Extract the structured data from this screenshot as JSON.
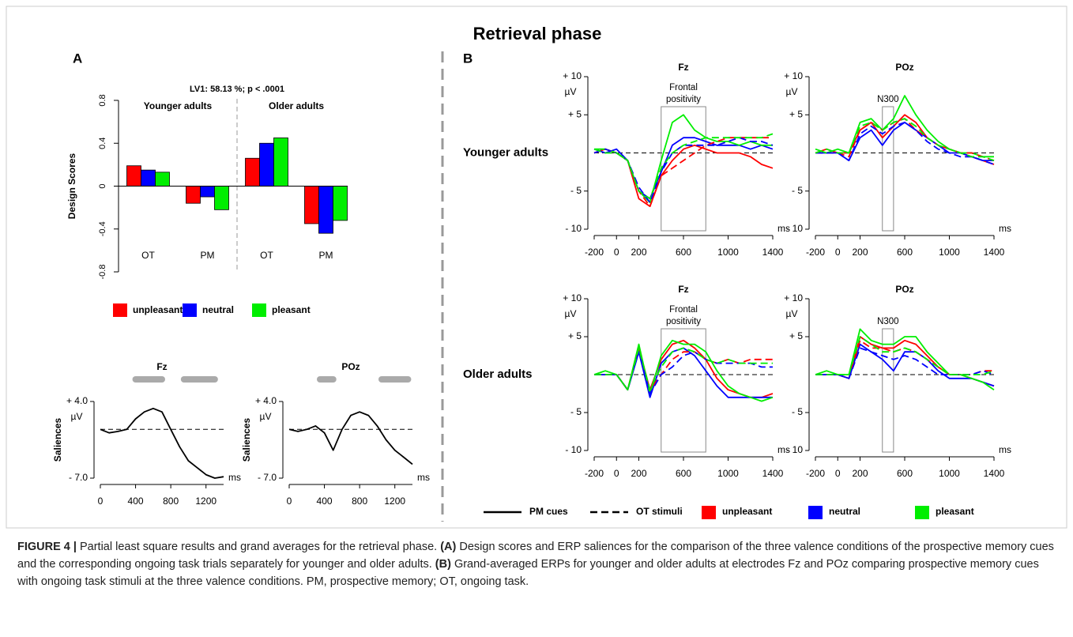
{
  "title": "Retrieval phase",
  "panels": [
    "A",
    "B"
  ],
  "chart_data": [
    {
      "type": "bar",
      "title": "LV1: 58.13 %; p < .0001",
      "ylabel": "Design Scores",
      "groups": [
        "Younger adults",
        "Older adults"
      ],
      "categories": [
        "OT",
        "PM",
        "OT",
        "PM"
      ],
      "series": [
        {
          "name": "unpleasant",
          "color": "#ff0000",
          "values": [
            0.19,
            -0.16,
            0.26,
            -0.35
          ]
        },
        {
          "name": "neutral",
          "color": "#0000ff",
          "values": [
            0.15,
            -0.1,
            0.4,
            -0.44
          ]
        },
        {
          "name": "pleasant",
          "color": "#00ee00",
          "values": [
            0.13,
            -0.22,
            0.45,
            -0.32
          ]
        }
      ],
      "ylim": [
        -0.8,
        0.8
      ],
      "yticks": [
        -0.8,
        -0.4,
        0,
        0.4,
        0.8
      ]
    },
    {
      "type": "line",
      "title": "Fz",
      "ylabel": "Saliences",
      "yunit": "µV",
      "xunit": "ms",
      "x": [
        0,
        100,
        200,
        300,
        400,
        500,
        600,
        700,
        800,
        900,
        1000,
        1100,
        1200,
        1300,
        1400
      ],
      "series": [
        {
          "color": "#000000",
          "dash": "solid",
          "values": [
            0,
            -0.5,
            -0.3,
            0,
            1.5,
            2.5,
            3,
            2.5,
            0,
            -2.5,
            -4.5,
            -5.5,
            -6.5,
            -7,
            -6.8
          ]
        }
      ],
      "significant": [
        [
          400,
          700
        ],
        [
          950,
          1300
        ]
      ],
      "hline": 0,
      "xlim": [
        0,
        1400
      ],
      "xticks": [
        0,
        400,
        800,
        1200
      ],
      "ylim": [
        -7,
        4
      ],
      "yticks": [
        {
          "value": 4,
          "label": "+ 4.0"
        },
        {
          "value": -7,
          "label": "- 7.0"
        }
      ]
    },
    {
      "type": "line",
      "title": "POz",
      "ylabel": "Saliences",
      "yunit": "µV",
      "xunit": "ms",
      "x": [
        0,
        100,
        200,
        300,
        400,
        500,
        600,
        700,
        800,
        900,
        1000,
        1100,
        1200,
        1300,
        1400
      ],
      "series": [
        {
          "color": "#000000",
          "dash": "solid",
          "values": [
            0,
            -0.3,
            0,
            0.5,
            -0.5,
            -3,
            0,
            2,
            2.5,
            2,
            0.5,
            -1.5,
            -3,
            -4,
            -5
          ]
        }
      ],
      "significant": [
        [
          350,
          500
        ],
        [
          1050,
          1350
        ]
      ],
      "hline": 0,
      "xlim": [
        0,
        1400
      ],
      "xticks": [
        0,
        400,
        800,
        1200
      ],
      "ylim": [
        -7,
        4
      ],
      "yticks": [
        {
          "value": 4,
          "label": "+ 4.0"
        },
        {
          "value": -7,
          "label": "- 7.0"
        }
      ]
    },
    {
      "type": "line",
      "title": "Fz",
      "row_label": "Younger adults",
      "yunit": "µV",
      "xunit": "ms",
      "window": {
        "label": "Frontal positivity",
        "xlim": [
          400,
          800
        ]
      },
      "hline": 0,
      "x": [
        -200,
        -100,
        0,
        100,
        200,
        300,
        400,
        500,
        600,
        700,
        800,
        900,
        1000,
        1100,
        1200,
        1300,
        1400
      ],
      "series": [
        {
          "name": "unpleasant",
          "color": "#ff0000",
          "dash": "solid",
          "values": [
            0,
            0.5,
            0,
            -1,
            -6,
            -7,
            -3,
            -1,
            0.5,
            1,
            0.5,
            0,
            0,
            0,
            -0.5,
            -1.5,
            -2
          ]
        },
        {
          "name": "neutral",
          "color": "#0000ff",
          "dash": "solid",
          "values": [
            0.5,
            0,
            0.5,
            -1,
            -5,
            -6,
            -2.5,
            1,
            2,
            2,
            1.5,
            1,
            1,
            1,
            0.5,
            1,
            0.5
          ]
        },
        {
          "name": "pleasant",
          "color": "#00ee00",
          "dash": "solid",
          "values": [
            0.5,
            0.5,
            0,
            -1,
            -5,
            -6.5,
            -1,
            4,
            5,
            3,
            2,
            1.5,
            1.5,
            1,
            1.5,
            1,
            1
          ]
        },
        {
          "name": "unpleasant",
          "color": "#ff0000",
          "dash": "dashed",
          "values": [
            0,
            0.5,
            0,
            -1,
            -5,
            -7,
            -3,
            -2,
            -1,
            0,
            1,
            1.5,
            2,
            2,
            2,
            2,
            2
          ]
        },
        {
          "name": "neutral",
          "color": "#0000ff",
          "dash": "dashed",
          "values": [
            0,
            0.5,
            0,
            -1,
            -4.5,
            -6.5,
            -2.5,
            0,
            1,
            1,
            1,
            1,
            1.5,
            2,
            1.5,
            1.5,
            1
          ]
        },
        {
          "name": "pleasant",
          "color": "#00ee00",
          "dash": "dashed",
          "values": [
            0.5,
            0,
            0,
            -1,
            -5,
            -6,
            -2,
            0,
            1,
            1.5,
            2,
            2,
            2,
            2,
            2,
            2,
            2.5
          ]
        }
      ],
      "xlim": [
        -200,
        1400
      ],
      "xticks": [
        -200,
        0,
        200,
        600,
        1000,
        1400
      ],
      "ylim": [
        -10,
        10
      ],
      "yticks": [
        {
          "value": 10,
          "label": "+ 10"
        },
        {
          "value": 5,
          "label": "+ 5"
        },
        {
          "value": -5,
          "label": "- 5"
        },
        {
          "value": -10,
          "label": "- 10"
        }
      ]
    },
    {
      "type": "line",
      "title": "POz",
      "yunit": "µV",
      "xunit": "ms",
      "window": {
        "label": "N300",
        "xlim": [
          400,
          500
        ]
      },
      "hline": 0,
      "x": [
        -200,
        -100,
        0,
        100,
        200,
        300,
        400,
        500,
        600,
        700,
        800,
        900,
        1000,
        1100,
        1200,
        1300,
        1400
      ],
      "series": [
        {
          "name": "unpleasant",
          "color": "#ff0000",
          "dash": "solid",
          "values": [
            0,
            0.5,
            0,
            0,
            3,
            4,
            2,
            3.5,
            5,
            4,
            2,
            1,
            0.5,
            0,
            -0.5,
            -1,
            -1.5
          ]
        },
        {
          "name": "neutral",
          "color": "#0000ff",
          "dash": "solid",
          "values": [
            0,
            0,
            0,
            -1,
            2,
            3,
            1,
            3,
            4,
            3,
            2,
            1,
            0,
            0,
            -0.5,
            -1,
            -1
          ]
        },
        {
          "name": "pleasant",
          "color": "#00ee00",
          "dash": "solid",
          "values": [
            0.5,
            0,
            0.5,
            0,
            4,
            4.5,
            3,
            4.5,
            7.5,
            5,
            3,
            1.5,
            0.5,
            0,
            0,
            -0.5,
            -0.5
          ]
        },
        {
          "name": "unpleasant",
          "color": "#ff0000",
          "dash": "dashed",
          "values": [
            0,
            0,
            0,
            -0.5,
            3,
            4,
            3,
            4,
            4.5,
            3,
            2,
            1,
            0.5,
            0,
            0,
            -0.5,
            -1
          ]
        },
        {
          "name": "neutral",
          "color": "#0000ff",
          "dash": "dashed",
          "values": [
            0,
            0,
            0,
            -1,
            2.5,
            3.5,
            2.5,
            3.5,
            4,
            3,
            1.5,
            0.5,
            0,
            -0.5,
            -0.5,
            -1,
            -1.5
          ]
        },
        {
          "name": "pleasant",
          "color": "#00ee00",
          "dash": "dashed",
          "values": [
            0,
            0.5,
            0,
            0,
            3.5,
            4,
            3,
            4,
            4.5,
            3.5,
            2,
            1,
            0.5,
            0,
            -0.5,
            -0.5,
            -1
          ]
        }
      ],
      "xlim": [
        -200,
        1400
      ],
      "xticks": [
        -200,
        0,
        200,
        600,
        1000,
        1400
      ],
      "ylim": [
        -10,
        10
      ],
      "yticks": [
        {
          "value": 10,
          "label": "+ 10"
        },
        {
          "value": 5,
          "label": "+ 5"
        },
        {
          "value": -5,
          "label": "- 5"
        },
        {
          "value": -10,
          "label": "- 10"
        }
      ]
    },
    {
      "type": "line",
      "title": "Fz",
      "row_label": "Older adults",
      "yunit": "µV",
      "xunit": "ms",
      "window": {
        "label": "Frontal positivity",
        "xlim": [
          400,
          800
        ]
      },
      "hline": 0,
      "x": [
        -200,
        -100,
        0,
        100,
        200,
        300,
        400,
        500,
        600,
        700,
        800,
        900,
        1000,
        1100,
        1200,
        1300,
        1400
      ],
      "series": [
        {
          "name": "unpleasant",
          "color": "#ff0000",
          "dash": "solid",
          "values": [
            0,
            0,
            0,
            -2,
            3.5,
            -2,
            2,
            4,
            4.5,
            3.5,
            2,
            -0.5,
            -2,
            -2.5,
            -3,
            -3,
            -2.5
          ]
        },
        {
          "name": "neutral",
          "color": "#0000ff",
          "dash": "solid",
          "values": [
            0,
            0,
            0,
            -2,
            3,
            -3,
            1.5,
            3,
            3.5,
            2.5,
            0.5,
            -1.5,
            -3,
            -3,
            -3,
            -3,
            -3
          ]
        },
        {
          "name": "pleasant",
          "color": "#00ee00",
          "dash": "solid",
          "values": [
            0,
            0.5,
            0,
            -2,
            4,
            -2.5,
            2.5,
            4.5,
            4,
            4,
            3,
            0.5,
            -1.5,
            -2.5,
            -3,
            -3.5,
            -3
          ]
        },
        {
          "name": "unpleasant",
          "color": "#ff0000",
          "dash": "dashed",
          "values": [
            0,
            0,
            0,
            -2,
            3.5,
            -2,
            0,
            2,
            3,
            3,
            2,
            1.5,
            2,
            1.5,
            2,
            2,
            2
          ]
        },
        {
          "name": "neutral",
          "color": "#0000ff",
          "dash": "dashed",
          "values": [
            0,
            0,
            0,
            -2,
            3,
            -2.5,
            0,
            1,
            2.5,
            3,
            2,
            1.5,
            1.5,
            1.5,
            1.5,
            1,
            1
          ]
        },
        {
          "name": "pleasant",
          "color": "#00ee00",
          "dash": "dashed",
          "values": [
            0,
            0,
            0,
            -2,
            3.5,
            -2,
            1,
            3,
            3.5,
            3,
            2,
            1.5,
            2,
            1.5,
            1.5,
            1.5,
            1.5
          ]
        }
      ],
      "xlim": [
        -200,
        1400
      ],
      "xticks": [
        -200,
        0,
        200,
        600,
        1000,
        1400
      ],
      "ylim": [
        -10,
        10
      ],
      "yticks": [
        {
          "value": 10,
          "label": "+ 10"
        },
        {
          "value": 5,
          "label": "+ 5"
        },
        {
          "value": -5,
          "label": "- 5"
        },
        {
          "value": -10,
          "label": "- 10"
        }
      ]
    },
    {
      "type": "line",
      "title": "POz",
      "yunit": "µV",
      "xunit": "ms",
      "window": {
        "label": "N300",
        "xlim": [
          400,
          500
        ]
      },
      "hline": 0,
      "x": [
        -200,
        -100,
        0,
        100,
        200,
        300,
        400,
        500,
        600,
        700,
        800,
        900,
        1000,
        1100,
        1200,
        1300,
        1400
      ],
      "series": [
        {
          "name": "unpleasant",
          "color": "#ff0000",
          "dash": "solid",
          "values": [
            0,
            0,
            0,
            -0.5,
            5,
            4,
            3.5,
            3.5,
            4.5,
            4,
            2.5,
            1,
            0,
            0,
            -0.5,
            -1,
            -1.5
          ]
        },
        {
          "name": "neutral",
          "color": "#0000ff",
          "dash": "solid",
          "values": [
            0,
            0,
            0,
            -0.5,
            4,
            3,
            2,
            0.5,
            3,
            3,
            2,
            0.5,
            -0.5,
            -0.5,
            -0.5,
            -1,
            -1.5
          ]
        },
        {
          "name": "pleasant",
          "color": "#00ee00",
          "dash": "solid",
          "values": [
            0,
            0.5,
            0,
            0,
            6,
            4.5,
            4,
            4,
            5,
            5,
            3,
            1.5,
            0,
            0,
            -0.5,
            -1,
            -2
          ]
        },
        {
          "name": "unpleasant",
          "color": "#ff0000",
          "dash": "dashed",
          "values": [
            0,
            0,
            0,
            -0.5,
            4.5,
            3.5,
            3.5,
            3,
            3.5,
            3,
            2,
            1,
            0,
            0,
            0,
            0.5,
            0.5
          ]
        },
        {
          "name": "neutral",
          "color": "#0000ff",
          "dash": "dashed",
          "values": [
            0,
            0,
            0,
            -0.5,
            3.5,
            3,
            2.5,
            2,
            2.5,
            2,
            1,
            0,
            0,
            0,
            0,
            0.5,
            0
          ]
        },
        {
          "name": "pleasant",
          "color": "#00ee00",
          "dash": "dashed",
          "values": [
            0,
            0,
            0,
            0,
            5,
            4,
            3,
            3,
            3.5,
            3,
            2,
            1,
            0,
            0,
            0,
            0,
            0.5
          ]
        }
      ],
      "xlim": [
        -200,
        1400
      ],
      "xticks": [
        -200,
        0,
        200,
        600,
        1000,
        1400
      ],
      "ylim": [
        -10,
        10
      ],
      "yticks": [
        {
          "value": 10,
          "label": "+ 10"
        },
        {
          "value": 5,
          "label": "+ 5"
        },
        {
          "value": -5,
          "label": "- 5"
        },
        {
          "value": -10,
          "label": "- 10"
        }
      ]
    }
  ],
  "legend": {
    "styles": [
      {
        "label": "PM cues",
        "dash": "solid"
      },
      {
        "label": "OT stimuli",
        "dash": "dashed"
      }
    ]
  },
  "caption": {
    "segments": [
      {
        "text": "FIGURE 4 |",
        "bold": true
      },
      {
        "text": " Partial least square results and grand averages for the retrieval phase. ",
        "bold": false
      },
      {
        "text": "(A)",
        "bold": true
      },
      {
        "text": " Design scores and ERP saliences for the comparison of the three valence conditions of the prospective memory cues and the corresponding ongoing task trials separately for younger and older adults. ",
        "bold": false
      },
      {
        "text": "(B)",
        "bold": true
      },
      {
        "text": " Grand-averaged ERPs for younger and older adults at electrodes Fz and POz comparing prospective memory cues with ongoing task stimuli at the three valence conditions. PM, prospective memory; OT, ongoing task.",
        "bold": false
      }
    ]
  }
}
